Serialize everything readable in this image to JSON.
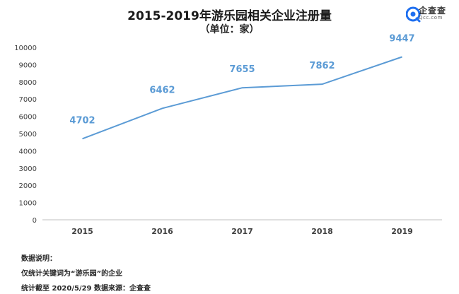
{
  "header": {
    "title": "2015-2019年游乐园相关企业注册量",
    "subtitle": "（单位：家）"
  },
  "logo": {
    "name": "企查查",
    "sub": "Qcc.com",
    "icon": "qcc-logo-icon",
    "color": "#1e6ff0"
  },
  "chart_data": {
    "type": "line",
    "categories": [
      "2015",
      "2016",
      "2017",
      "2018",
      "2019"
    ],
    "series": [
      {
        "values": [
          4702,
          6462,
          7655,
          7862,
          9447
        ]
      }
    ],
    "data_labels": [
      "4702",
      "6462",
      "7655",
      "7862",
      "9447"
    ],
    "y_ticks": [
      "0",
      "1000",
      "2000",
      "3000",
      "4000",
      "5000",
      "6000",
      "7000",
      "8000",
      "9000",
      "10000"
    ],
    "ylim": [
      0,
      10000
    ],
    "grid": false,
    "line_color": "#5b9bd5",
    "label_color": "#5b9bd5"
  },
  "footer": {
    "note_title": "数据说明：",
    "note_1": "仅统计关键词为“游乐园”的企业",
    "note_2": "统计截至 2020/5/29  数据来源：企查查"
  }
}
